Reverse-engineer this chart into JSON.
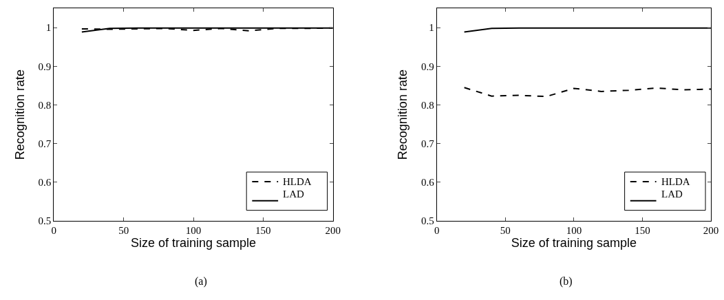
{
  "chart_data": [
    {
      "type": "line",
      "xlabel": "Size of training sample",
      "ylabel": "Recognition rate",
      "annotations": [
        "(a)"
      ],
      "x": [
        20,
        40,
        60,
        80,
        100,
        120,
        140,
        160,
        180,
        200
      ],
      "xlim": [
        0,
        200
      ],
      "xticks": [
        0,
        50,
        100,
        150,
        200
      ],
      "ylim": [
        0.5,
        1.05
      ],
      "yticks": [
        0.5,
        0.6,
        0.7,
        0.8,
        0.9,
        1
      ],
      "legend": "bottom right",
      "series": [
        {
          "name": "HLDA",
          "color": "#000000",
          "line_style": "dashed",
          "values": [
            0.997,
            0.996,
            0.997,
            0.998,
            0.993,
            0.998,
            0.992,
            0.998,
            0.998,
            0.999
          ]
        },
        {
          "name": "LAD",
          "color": "#000000",
          "line_style": "solid",
          "values": [
            0.989,
            0.998,
            0.999,
            0.999,
            0.999,
            0.999,
            0.999,
            0.999,
            0.999,
            0.999
          ]
        }
      ]
    },
    {
      "type": "line",
      "xlabel": "Size of training sample",
      "ylabel": "Recognition rate",
      "annotations": [
        "(b)"
      ],
      "x": [
        20,
        40,
        60,
        80,
        100,
        120,
        140,
        160,
        180,
        200
      ],
      "xlim": [
        0,
        200
      ],
      "xticks": [
        0,
        50,
        100,
        150,
        200
      ],
      "ylim": [
        0.5,
        1.05
      ],
      "yticks": [
        0.5,
        0.6,
        0.7,
        0.8,
        0.9,
        1
      ],
      "legend": "bottom right",
      "series": [
        {
          "name": "HLDA",
          "color": "#000000",
          "line_style": "dashed",
          "values": [
            0.845,
            0.823,
            0.825,
            0.822,
            0.843,
            0.835,
            0.838,
            0.844,
            0.839,
            0.841
          ]
        },
        {
          "name": "LAD",
          "color": "#000000",
          "line_style": "solid",
          "values": [
            0.989,
            0.998,
            0.999,
            0.999,
            0.999,
            0.999,
            0.999,
            0.999,
            0.999,
            0.999
          ]
        }
      ]
    }
  ]
}
